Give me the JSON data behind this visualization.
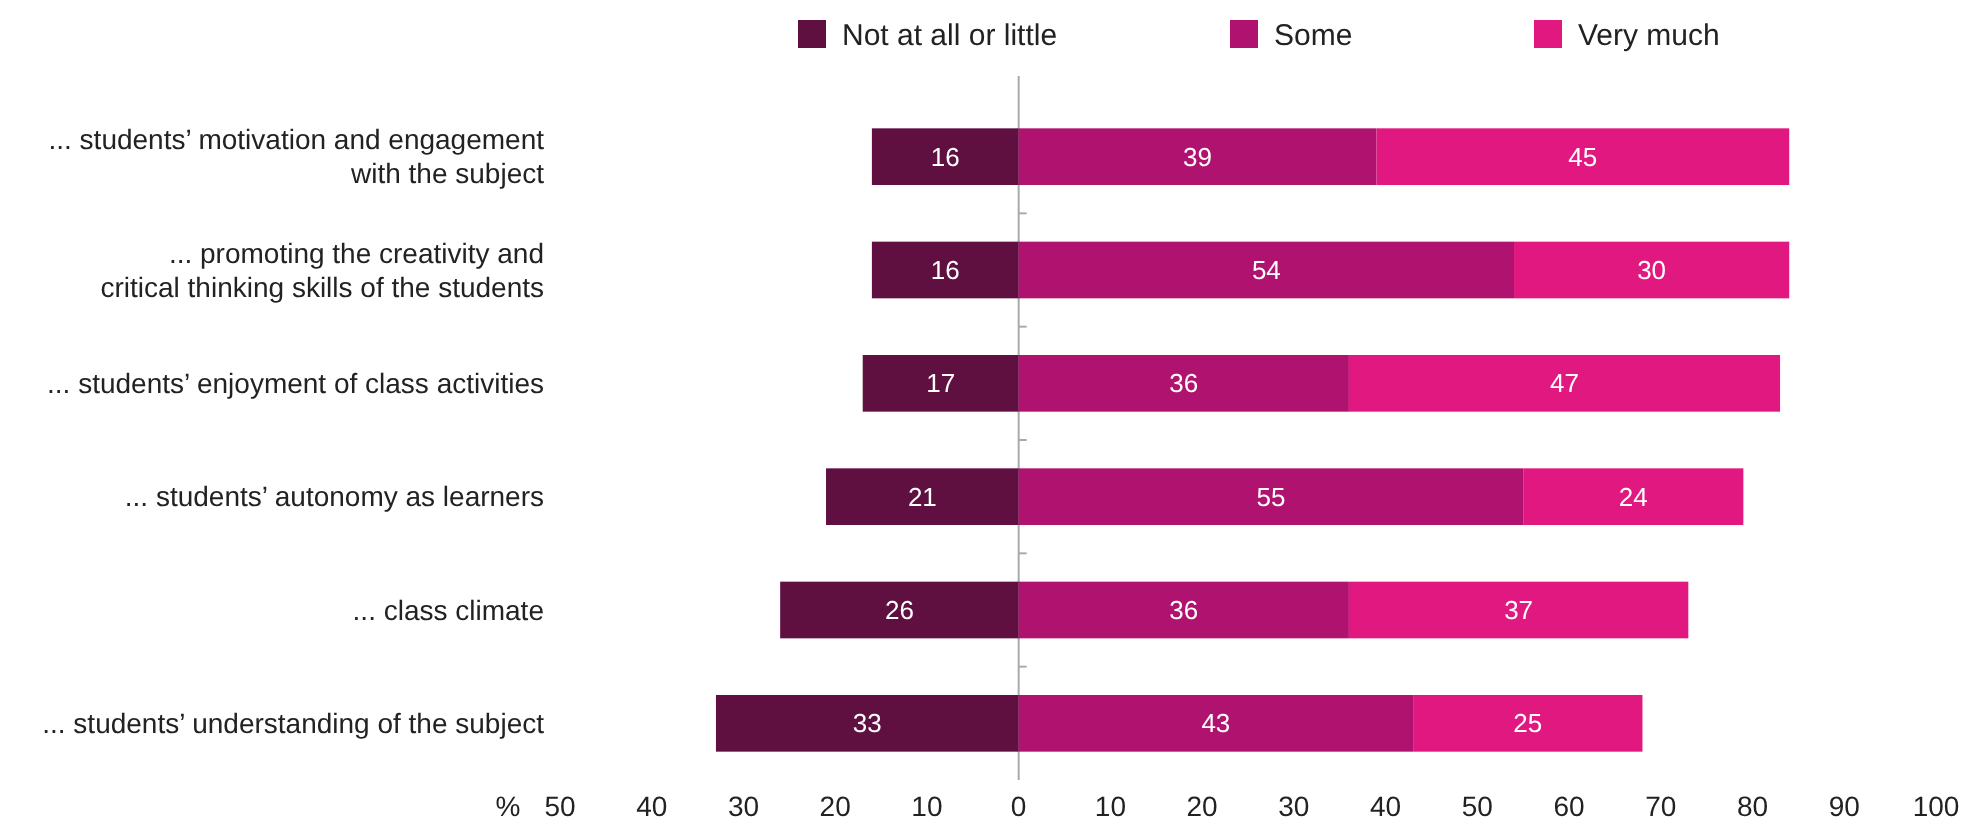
{
  "chart_data": {
    "type": "bar",
    "orientation": "horizontal",
    "xlabel": "%",
    "categories": [
      "... students’ motivation and engagement\nwith the subject",
      "... promoting the creativity and\ncritical thinking skills of the students",
      "... students’ enjoyment of class activities",
      "... students’ autonomy as learners",
      "... class climate",
      "... students’ understanding of the subject"
    ],
    "series": [
      {
        "name": "Not at all or little",
        "color": "#5f1041",
        "base": [
          -16,
          -16,
          -17,
          -21,
          -26,
          -33
        ],
        "values": [
          16,
          16,
          17,
          21,
          26,
          33
        ],
        "value_labels": [
          "16",
          "16",
          "17",
          "21",
          "26",
          "33"
        ]
      },
      {
        "name": "Some",
        "color": "#b0136f",
        "base": [
          0,
          0,
          0,
          0,
          0,
          0
        ],
        "values": [
          39,
          54,
          36,
          55,
          36,
          43
        ],
        "value_labels": [
          "39",
          "54",
          "36",
          "55",
          "36",
          "43"
        ]
      },
      {
        "name": "Very much",
        "color": "#e1187f",
        "base": [
          39,
          54,
          36,
          55,
          36,
          43
        ],
        "values": [
          45,
          30,
          47,
          24,
          37,
          25
        ],
        "value_labels": [
          "45",
          "30",
          "47",
          "24",
          "37",
          "25"
        ]
      }
    ],
    "xlim": [
      -50,
      100
    ],
    "xticks": [
      {
        "value": -50,
        "label": "50"
      },
      {
        "value": -40,
        "label": "40"
      },
      {
        "value": -30,
        "label": "30"
      },
      {
        "value": -20,
        "label": "20"
      },
      {
        "value": -10,
        "label": "10"
      },
      0,
      10,
      20,
      30,
      40,
      50,
      60,
      70,
      80,
      90,
      100
    ],
    "legend": "top"
  }
}
